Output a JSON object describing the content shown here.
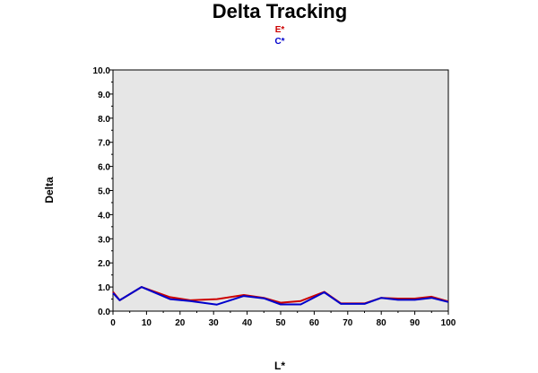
{
  "chart_data": {
    "type": "line",
    "title": "Delta Tracking",
    "xlabel": "L*",
    "ylabel": "Delta",
    "xlim": [
      0,
      100
    ],
    "ylim": [
      0,
      10
    ],
    "xticks": [
      "0",
      "10",
      "20",
      "30",
      "40",
      "50",
      "60",
      "70",
      "80",
      "90",
      "100"
    ],
    "yticks": [
      "0.0",
      "1.0",
      "2.0",
      "3.0",
      "4.0",
      "5.0",
      "6.0",
      "7.0",
      "8.0",
      "9.0",
      "10.0"
    ],
    "grid": false,
    "plot_background": "#e6e6e6",
    "legend_position": "top-center",
    "series": [
      {
        "name": "E*",
        "color": "#cc0000",
        "x": [
          0,
          2,
          8.5,
          17,
          23,
          31,
          39,
          45,
          50,
          56,
          63,
          68,
          75,
          80,
          85,
          90,
          95,
          100
        ],
        "y": [
          0.8,
          0.45,
          1.0,
          0.58,
          0.45,
          0.5,
          0.67,
          0.55,
          0.35,
          0.42,
          0.8,
          0.32,
          0.32,
          0.55,
          0.52,
          0.52,
          0.6,
          0.4
        ]
      },
      {
        "name": "C*",
        "color": "#0000cc",
        "x": [
          0,
          2,
          8.5,
          17,
          23,
          31,
          39,
          45,
          50,
          56,
          63,
          68,
          75,
          80,
          85,
          90,
          95,
          100
        ],
        "y": [
          0.75,
          0.45,
          1.0,
          0.5,
          0.42,
          0.27,
          0.63,
          0.53,
          0.28,
          0.28,
          0.78,
          0.3,
          0.3,
          0.55,
          0.47,
          0.47,
          0.55,
          0.38
        ]
      }
    ]
  }
}
